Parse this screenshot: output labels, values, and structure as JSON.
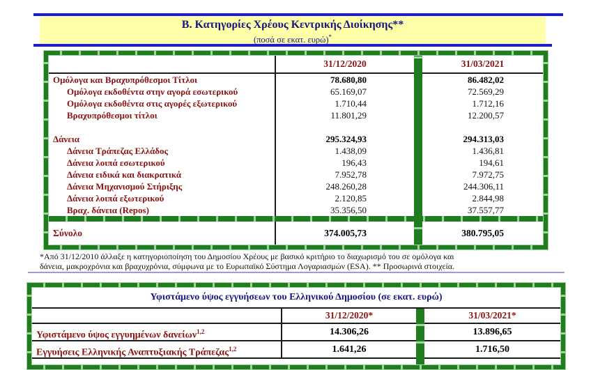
{
  "page": {
    "title": "Β. Κατηγορίες Χρέους Κεντρικής Διοίκησης**",
    "subtitle": "(ποσά σε εκατ. ευρώ)",
    "subtitle_sup": "*"
  },
  "colors": {
    "frame_green": "#1f7d1f",
    "banner_yellow": "#ffffaa",
    "divider_blue": "#1a1ae0",
    "heading_navy": "#16167e",
    "label_maroon": "#8b1212"
  },
  "debt_table": {
    "col_headers": [
      "31/12/2020",
      "31/03/2021"
    ],
    "rows": [
      {
        "label": "Ομόλογα και Βραχυπρόθεσμοι Τίτλοι",
        "indent": false,
        "bold": true,
        "v2020": "78.680,80",
        "v2021": "86.482,02"
      },
      {
        "label": "Ομόλογα εκδοθέντα στην αγορά εσωτερικού",
        "indent": true,
        "bold": false,
        "v2020": "65.169,07",
        "v2021": "72.569,29"
      },
      {
        "label": "Ομόλογα εκδοθέντα στις αγορές εξωτερικού",
        "indent": true,
        "bold": false,
        "v2020": "1.710,44",
        "v2021": "1.712,16"
      },
      {
        "label": "Βραχυπρόθεσμοι τίτλοι",
        "indent": true,
        "bold": false,
        "v2020": "11.801,29",
        "v2021": "12.200,57"
      },
      {
        "label": "",
        "blank": true,
        "indent": false,
        "bold": false,
        "v2020": "",
        "v2021": ""
      },
      {
        "label": "Δάνεια",
        "indent": false,
        "bold": true,
        "v2020": "295.324,93",
        "v2021": "294.313,03"
      },
      {
        "label": "Δάνεια Τράπεζας Ελλάδος",
        "indent": true,
        "bold": false,
        "v2020": "1.438,09",
        "v2021": "1.436,81"
      },
      {
        "label": "Δάνεια λοιπά εσωτερικού",
        "indent": true,
        "bold": false,
        "v2020": "196,43",
        "v2021": "194,61"
      },
      {
        "label": "Δάνεια ειδικά και διακρατικά",
        "indent": true,
        "bold": false,
        "v2020": "7.952,78",
        "v2021": "7.972,75"
      },
      {
        "label": "Δάνεια Μηχανισμού Στήριξης",
        "indent": true,
        "bold": false,
        "v2020": "248.260,28",
        "v2021": "244.306,11"
      },
      {
        "label": "Δάνεια λοιπά εξωτερικού",
        "indent": true,
        "bold": false,
        "v2020": "2.120,85",
        "v2021": "2.844,98"
      },
      {
        "label": "Βραχ. δάνεια (Repos)",
        "indent": true,
        "bold": false,
        "v2020": "35.356,50",
        "v2021": "37.557,77"
      }
    ],
    "total": {
      "label": "Σύνολο",
      "v2020": "374.005,73",
      "v2021": "380.795,05"
    }
  },
  "footnote": {
    "line1": "*Από 31/12/2010 άλλαξε η κατηγοριοποίηση του Δημοσίου Χρέους με βασικό κριτήριο το διαχωρισμό του σε ομόλογα και",
    "line2": "δάνεια, μακροχρόνια και βραχυχρόνια, σύμφωνα με το Ευρωπαϊκό Σύστημα Λογαριασμών (ESA). ** Προσωρινά στοιχεία."
  },
  "guarantees_table": {
    "title": "Υφιστάμενο ύψος εγγυήσεων του Ελληνικού Δημοσίου (σε εκατ. ευρώ)",
    "col_headers": [
      "31/12/2020*",
      "31/03/2021*"
    ],
    "rows": [
      {
        "label": "Υφιστάμενο ύψος εγγυημένων δανείων",
        "sup": "1,2",
        "v2020": "14.306,26",
        "v2021": "13.896,65"
      },
      {
        "label": "Εγγυήσεις Ελληνικής Αναπτυξιακής Τράπεζας",
        "sup": "1,2",
        "v2020": "1.641,26",
        "v2021": "1.716,50"
      }
    ]
  }
}
